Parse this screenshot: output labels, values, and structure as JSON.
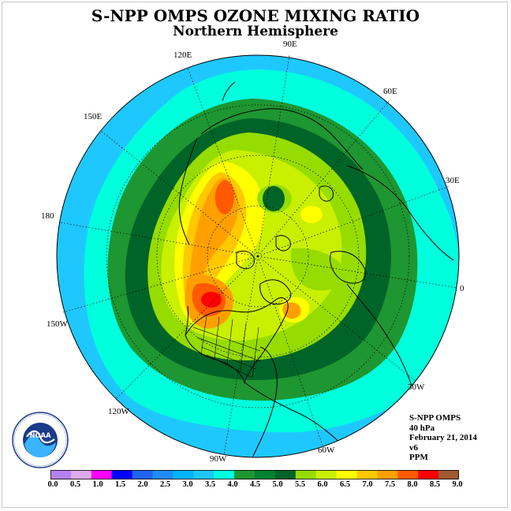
{
  "title": "S-NPP OMPS OZONE MIXING RATIO",
  "subtitle": "Northern Hemisphere",
  "longitude_labels": [
    "90E",
    "60E",
    "30E",
    "0",
    "30W",
    "60W",
    "90W",
    "120W",
    "150W",
    "180",
    "150E",
    "120E"
  ],
  "info": {
    "instrument": "S-NPP OMPS",
    "level": "40 hPa",
    "date": "February 21, 2014",
    "version": "v6",
    "units": "PPM"
  },
  "logo": {
    "text": "NOAA",
    "name": "noaa-logo"
  },
  "colorbar": {
    "ticks": [
      "0.0",
      "0.5",
      "1.0",
      "1.5",
      "2.0",
      "2.5",
      "3.0",
      "3.5",
      "4.0",
      "4.5",
      "5.0",
      "5.5",
      "6.0",
      "6.5",
      "7.0",
      "7.5",
      "8.0",
      "8.5",
      "9.0"
    ],
    "colors": [
      "#b482f0",
      "#dcaaf0",
      "#ff00ff",
      "#0000ff",
      "#1e64f0",
      "#1e8cff",
      "#00b4ff",
      "#1ec8ff",
      "#00ffdc",
      "#1e9632",
      "#008232",
      "#006428",
      "#96dc00",
      "#c8f000",
      "#ffff00",
      "#ffc800",
      "#ffa000",
      "#ff5a00",
      "#ff0000",
      "#a05a32"
    ]
  },
  "palette": {
    "cyan": "#1ec8ff",
    "aqua": "#00ffdc",
    "green": "#1e9632",
    "darkgreen": "#006428",
    "lime": "#96dc00",
    "yellowgreen": "#c8f000",
    "yellow": "#ffff00",
    "gold": "#ffc800",
    "orange": "#ffa000",
    "redorange": "#ff5a00",
    "red": "#ff0000"
  }
}
